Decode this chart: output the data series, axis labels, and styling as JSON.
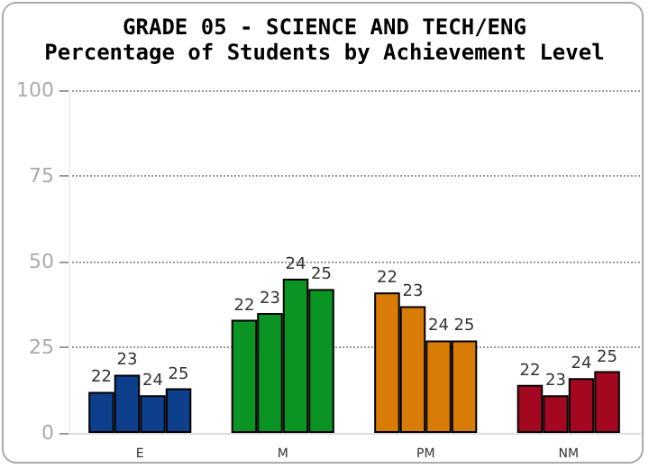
{
  "chart_data": {
    "type": "bar",
    "title": "GRADE 05 - SCIENCE AND TECH/ENG",
    "subtitle": "Percentage of Students by Achievement Level",
    "categories": [
      "E",
      "M",
      "PM",
      "NM"
    ],
    "series": [
      {
        "name": "22",
        "colors": [
          "#0e3f8c",
          "#0a9424",
          "#d97b07",
          "#a30820"
        ],
        "values": [
          12,
          33,
          41,
          14
        ]
      },
      {
        "name": "23",
        "colors": [
          "#0e3f8c",
          "#0a9424",
          "#d97b07",
          "#a30820"
        ],
        "values": [
          17,
          35,
          37,
          11
        ]
      },
      {
        "name": "24",
        "colors": [
          "#0e3f8c",
          "#0a9424",
          "#d97b07",
          "#a30820"
        ],
        "values": [
          11,
          45,
          27,
          16
        ]
      },
      {
        "name": "25",
        "colors": [
          "#0e3f8c",
          "#0a9424",
          "#d97b07",
          "#a30820"
        ],
        "values": [
          13,
          42,
          27,
          18
        ]
      }
    ],
    "ylim": [
      0,
      100
    ],
    "yticks": [
      0,
      25,
      50,
      75,
      100
    ],
    "grid": "y",
    "legend": false
  }
}
